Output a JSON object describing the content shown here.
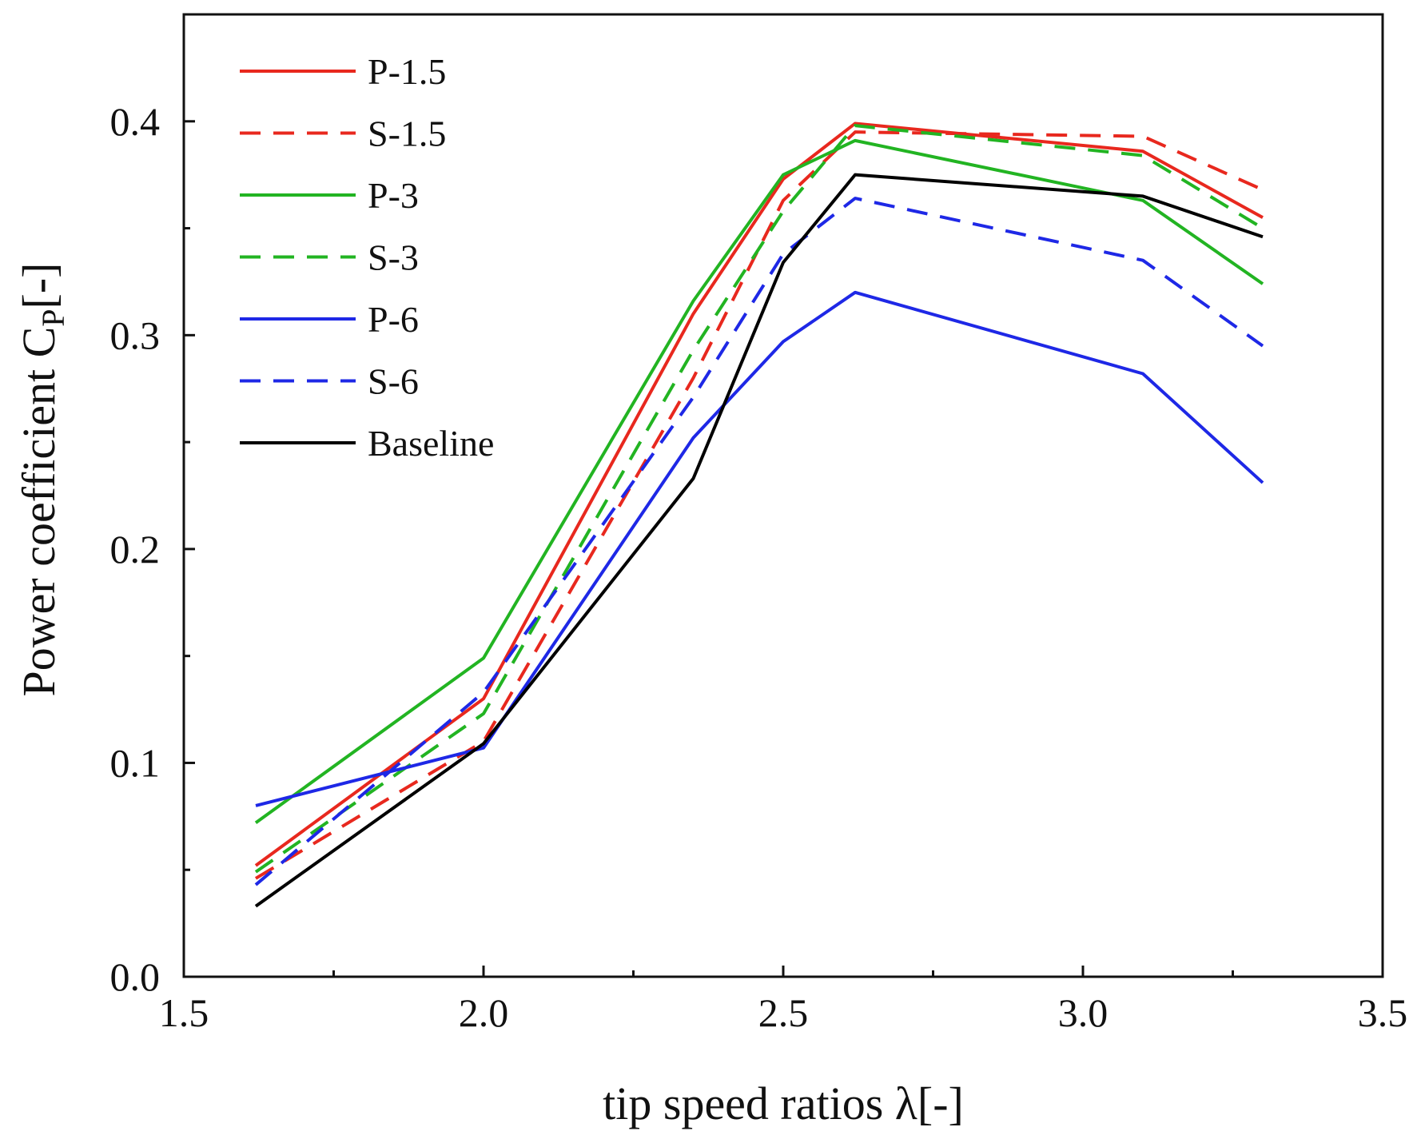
{
  "chart_data": {
    "type": "line",
    "title": "",
    "xlabel": "tip speed ratios λ[-]",
    "ylabel": {
      "main": "Power coefficient C",
      "subscript": "P",
      "suffix": "[-]"
    },
    "xlim": [
      1.5,
      3.5
    ],
    "ylim": [
      0.0,
      0.45
    ],
    "x_ticks": [
      "1.5",
      "2.0",
      "2.5",
      "3.0",
      "3.5"
    ],
    "x_tick_values": [
      1.5,
      2.0,
      2.5,
      3.0,
      3.5
    ],
    "x_minor_ticks": [
      1.75,
      2.25,
      2.75,
      3.25
    ],
    "y_ticks": [
      "0.0",
      "0.1",
      "0.2",
      "0.3",
      "0.4"
    ],
    "y_tick_values": [
      0.0,
      0.1,
      0.2,
      0.3,
      0.4
    ],
    "y_minor_ticks": [
      0.05,
      0.15,
      0.25,
      0.35
    ],
    "grid": false,
    "legend_position": "top-left",
    "x": [
      1.62,
      2.0,
      2.35,
      2.5,
      2.62,
      3.1,
      3.3
    ],
    "series": [
      {
        "name": "P-1.5",
        "color": "#e8281e",
        "dash": "solid",
        "values": [
          0.052,
          0.13,
          0.31,
          0.373,
          0.399,
          0.386,
          0.355
        ]
      },
      {
        "name": "S-1.5",
        "color": "#e8281e",
        "dash": "dashed",
        "values": [
          0.046,
          0.11,
          0.28,
          0.363,
          0.395,
          0.393,
          0.368
        ]
      },
      {
        "name": "P-3",
        "color": "#22b422",
        "dash": "solid",
        "values": [
          0.072,
          0.149,
          0.316,
          0.375,
          0.391,
          0.363,
          0.324
        ]
      },
      {
        "name": "S-3",
        "color": "#22b422",
        "dash": "dashed",
        "values": [
          0.049,
          0.123,
          0.293,
          0.358,
          0.398,
          0.384,
          0.35
        ]
      },
      {
        "name": "P-6",
        "color": "#1e28e6",
        "dash": "solid",
        "values": [
          0.08,
          0.107,
          0.252,
          0.297,
          0.32,
          0.282,
          0.231
        ]
      },
      {
        "name": "S-6",
        "color": "#1e28e6",
        "dash": "dashed",
        "values": [
          0.043,
          0.133,
          0.271,
          0.338,
          0.364,
          0.335,
          0.295
        ]
      },
      {
        "name": "Baseline",
        "color": "#000000",
        "dash": "solid",
        "values": [
          0.033,
          0.109,
          0.233,
          0.334,
          0.375,
          0.365,
          0.346
        ]
      }
    ]
  }
}
